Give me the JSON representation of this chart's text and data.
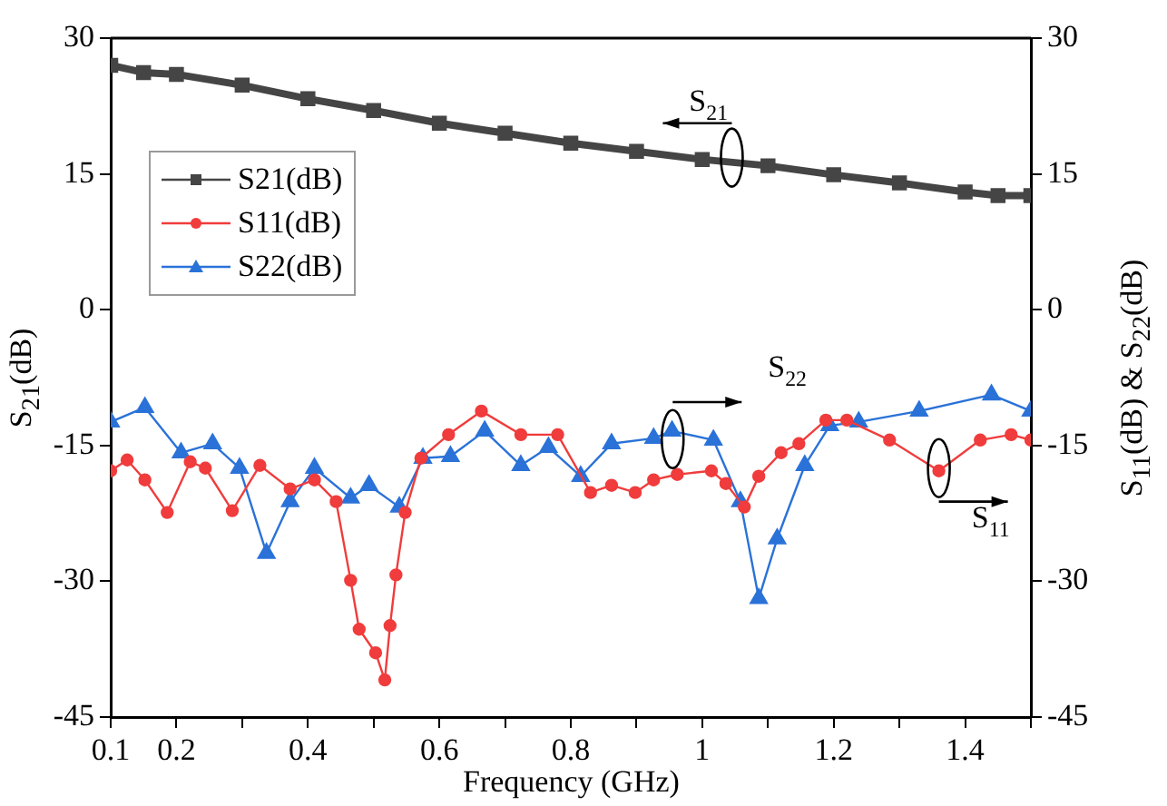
{
  "chart_data": {
    "type": "line",
    "xlabel": "Frequency (GHz)",
    "ylabel": "S$_{21}$(dB)",
    "y2label": "S$_{11}$(dB) & S$_{22}$(dB)",
    "xlim": [
      0.1,
      1.5
    ],
    "xticks": [
      0.1,
      0.2,
      {
        "value": 0.3,
        "label": null
      },
      0.4,
      {
        "value": 0.5,
        "label": null
      },
      0.6,
      {
        "value": 0.7,
        "label": null
      },
      0.8,
      {
        "value": 0.9,
        "label": null
      },
      1.0,
      {
        "value": 1.1,
        "label": null
      },
      1.2,
      {
        "value": 1.3,
        "label": null
      },
      1.4,
      {
        "value": 1.5,
        "label": null
      }
    ],
    "ylim": [
      -45,
      30
    ],
    "yticks": [
      -45,
      -30,
      -15,
      0,
      15,
      30
    ],
    "y2lim": [
      -45,
      30
    ],
    "y2ticks": [
      -45,
      -30,
      -15,
      0,
      15,
      30
    ],
    "grid": false,
    "legend": "top left",
    "line_style": "solid",
    "series": [
      {
        "name": "S21(dB)",
        "color": "#454545",
        "marker": "square",
        "x": [
          0.1,
          0.15,
          0.2,
          0.3,
          0.4,
          0.5,
          0.6,
          0.7,
          0.8,
          0.9,
          1.0,
          1.1,
          1.2,
          1.3,
          1.4,
          1.45,
          1.5
        ],
        "values": [
          27,
          26.2,
          26,
          24.8,
          23.3,
          22,
          20.6,
          19.5,
          18.4,
          17.5,
          16.6,
          15.9,
          14.9,
          14,
          13,
          12.6,
          12.6
        ]
      },
      {
        "name": "S11(dB)",
        "color": "#f03c3c",
        "marker": "circle",
        "axis": "y2",
        "x": [
          0.1,
          0.125,
          0.152,
          0.186,
          0.221,
          0.244,
          0.285,
          0.327,
          0.373,
          0.41,
          0.443,
          0.465,
          0.478,
          0.503,
          0.517,
          0.525,
          0.534,
          0.548,
          0.572,
          0.614,
          0.664,
          0.724,
          0.78,
          0.83,
          0.862,
          0.898,
          0.926,
          0.962,
          1.014,
          1.036,
          1.064,
          1.086,
          1.12,
          1.147,
          1.188,
          1.22,
          1.285,
          1.36,
          1.423,
          1.47,
          1.5
        ],
        "values": [
          -17.8,
          -16.6,
          -18.8,
          -22.4,
          -16.8,
          -17.5,
          -22.2,
          -17.2,
          -19.8,
          -18.8,
          -21.2,
          -29.9,
          -35.3,
          -37.9,
          -40.9,
          -34.9,
          -29.3,
          -22.4,
          -16.4,
          -13.8,
          -11.2,
          -13.8,
          -13.8,
          -20.2,
          -19.4,
          -20.2,
          -18.8,
          -18.2,
          -17.8,
          -19.2,
          -21.8,
          -18.4,
          -15.8,
          -14.8,
          -12.2,
          -12.2,
          -14.4,
          -17.8,
          -14.4,
          -13.8,
          -14.4
        ]
      },
      {
        "name": "S22(dB)",
        "color": "#2a72d8",
        "marker": "triangle",
        "axis": "y2",
        "x": [
          0.1,
          0.152,
          0.207,
          0.255,
          0.296,
          0.337,
          0.373,
          0.41,
          0.465,
          0.493,
          0.539,
          0.575,
          0.617,
          0.669,
          0.724,
          0.766,
          0.815,
          0.862,
          0.926,
          0.954,
          1.017,
          1.058,
          1.086,
          1.114,
          1.156,
          1.194,
          1.238,
          1.33,
          1.44,
          1.5
        ],
        "values": [
          -12.4,
          -10.8,
          -15.8,
          -14.8,
          -17.5,
          -26.9,
          -21.2,
          -17.5,
          -20.8,
          -19.4,
          -21.8,
          -16.4,
          -16.2,
          -13.4,
          -17.2,
          -15.2,
          -18.4,
          -14.8,
          -14.2,
          -13.4,
          -14.4,
          -21.2,
          -31.9,
          -25.3,
          -17.2,
          -12.8,
          -12.4,
          -11.2,
          -9.4,
          -11.2
        ]
      }
    ],
    "annotations": [
      "S$_{21}$",
      "S$_{22}$",
      "S$_{11}$"
    ]
  }
}
